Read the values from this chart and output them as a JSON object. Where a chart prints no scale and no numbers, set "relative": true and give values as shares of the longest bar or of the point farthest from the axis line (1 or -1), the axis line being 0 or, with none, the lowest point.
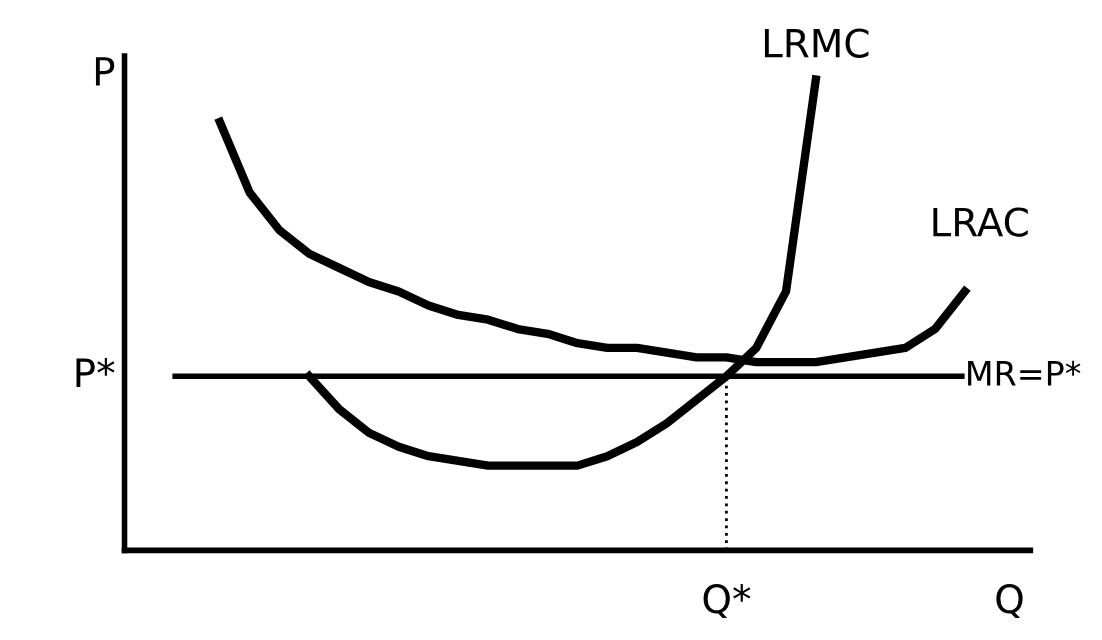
{
  "chart_data": {
    "type": "line",
    "relative": true,
    "xlabel": "Q",
    "ylabel": "P",
    "categories": [
      null,
      null,
      null,
      null,
      null,
      null,
      null,
      null,
      null,
      null,
      null,
      null,
      null,
      null,
      null,
      null,
      null,
      null,
      null,
      null,
      null,
      null,
      null,
      null,
      null,
      null,
      null,
      null,
      null,
      null,
      null
    ],
    "series": [
      {
        "name": "LRAC",
        "color": "#000000",
        "values": [
          null,
          null,
          null,
          0.91,
          0.76,
          0.68,
          0.63,
          0.6,
          0.57,
          0.55,
          0.52,
          0.5,
          0.49,
          0.47,
          0.46,
          0.44,
          0.43,
          0.43,
          0.42,
          0.41,
          0.41,
          0.4,
          0.4,
          0.4,
          0.41,
          0.42,
          0.43,
          0.47,
          0.55,
          null,
          null
        ]
      },
      {
        "name": "LRMC",
        "color": "#000000",
        "values": [
          null,
          null,
          null,
          null,
          null,
          null,
          0.37,
          0.3,
          0.25,
          0.22,
          0.2,
          0.19,
          0.18,
          0.18,
          0.18,
          0.18,
          0.2,
          0.23,
          0.27,
          0.32,
          0.37,
          0.43,
          0.55,
          1.0,
          null,
          null,
          null,
          null,
          null,
          null,
          null
        ]
      }
    ],
    "ref_lines": [
      {
        "axis": "y",
        "value": 0.37,
        "label": "MR=P*",
        "color": "#000000",
        "line_style": "solid"
      }
    ],
    "annotations": [
      "P*",
      "Q*"
    ],
    "legend": false,
    "grid": false
  }
}
